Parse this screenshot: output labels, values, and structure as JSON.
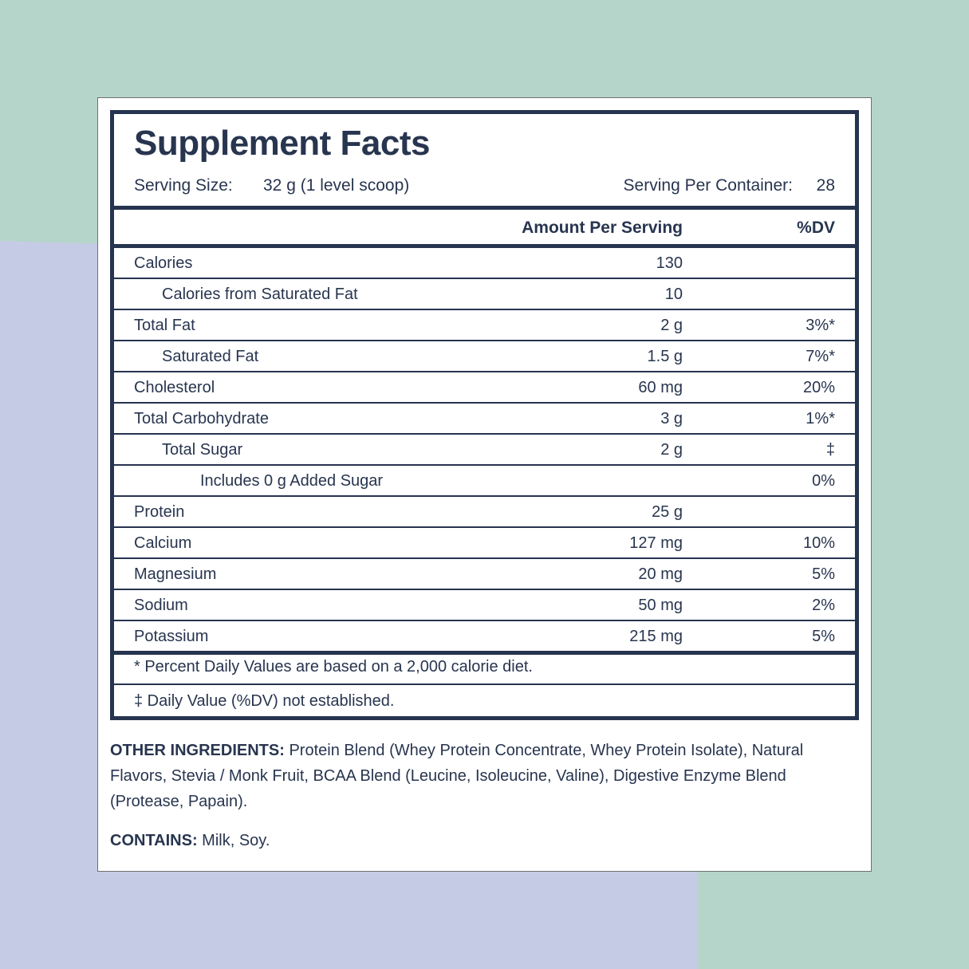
{
  "colors": {
    "background": "#b6d5ca",
    "shape": "#c6cbe5",
    "ink": "#26344f"
  },
  "title": "Supplement Facts",
  "serving_size_label": "Serving Size:",
  "serving_size_value": "32 g (1 level scoop)",
  "servings_label": "Serving Per Container:",
  "servings_value": "28",
  "header": {
    "amount": "Amount Per Serving",
    "dv": "%DV"
  },
  "rows": [
    {
      "name": "Calories",
      "amount": "130",
      "dv": "",
      "indent": 0
    },
    {
      "name": "Calories from Saturated Fat",
      "amount": "10",
      "dv": "",
      "indent": 1
    },
    {
      "name": "Total Fat",
      "amount": "2 g",
      "dv": "3%*",
      "indent": 0
    },
    {
      "name": "Saturated Fat",
      "amount": "1.5 g",
      "dv": "7%*",
      "indent": 1
    },
    {
      "name": "Cholesterol",
      "amount": "60 mg",
      "dv": "20%",
      "indent": 0
    },
    {
      "name": "Total Carbohydrate",
      "amount": "3 g",
      "dv": "1%*",
      "indent": 0
    },
    {
      "name": "Total Sugar",
      "amount": "2 g",
      "dv": "‡",
      "indent": 1
    },
    {
      "name": "Includes 0 g Added Sugar",
      "amount": "",
      "dv": "0%",
      "indent": 2
    },
    {
      "name": "Protein",
      "amount": "25 g",
      "dv": "",
      "indent": 0
    },
    {
      "name": "Calcium",
      "amount": "127 mg",
      "dv": "10%",
      "indent": 0
    },
    {
      "name": "Magnesium",
      "amount": "20 mg",
      "dv": "5%",
      "indent": 0
    },
    {
      "name": "Sodium",
      "amount": "50 mg",
      "dv": "2%",
      "indent": 0
    },
    {
      "name": "Potassium",
      "amount": "215 mg",
      "dv": "5%",
      "indent": 0
    }
  ],
  "footnotes": [
    "* Percent Daily Values are based on a 2,000 calorie diet.",
    "‡ Daily Value (%DV) not established."
  ],
  "other_ingredients_label": "OTHER INGREDIENTS:",
  "other_ingredients": " Protein Blend (Whey Protein Concentrate, Whey Protein Isolate), Natural Flavors, Stevia / Monk Fruit, BCAA Blend (Leucine, Isoleucine, Valine), Digestive Enzyme Blend (Protease, Papain).",
  "contains_label": "CONTAINS:",
  "contains": " Milk, Soy."
}
